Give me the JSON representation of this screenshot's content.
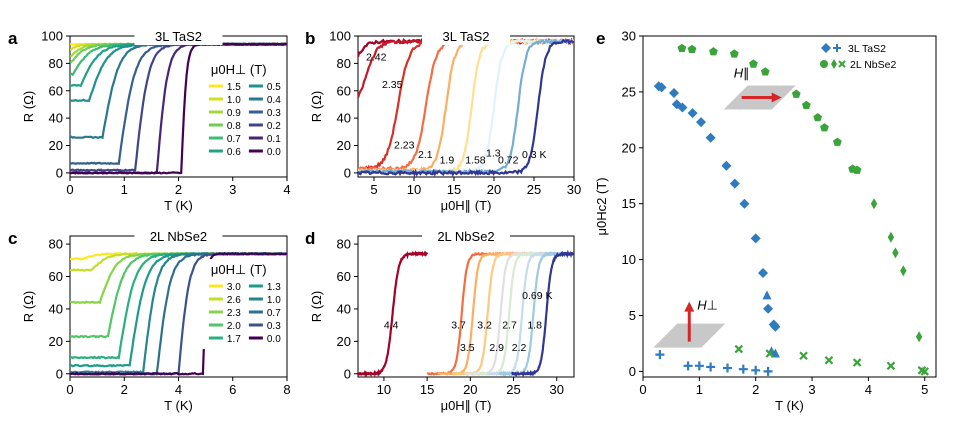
{
  "figure": {
    "panel_labels": [
      "a",
      "b",
      "c",
      "d",
      "e"
    ]
  },
  "colors": {
    "tas2_marker": "#2f7bbf",
    "nbse2_marker": "#3aa33a",
    "arrow": "#d62728",
    "plane": "#c8c8c8"
  },
  "chart_data": [
    {
      "panel": "a",
      "type": "line",
      "title": "3L TaS2",
      "xlabel": "T (K)",
      "ylabel": "R (Ω)",
      "xlim": [
        0,
        4
      ],
      "ylim": [
        -3,
        100
      ],
      "xticks": [
        0,
        1,
        2,
        3,
        4
      ],
      "yticks": [
        0,
        20,
        40,
        60,
        80,
        100
      ],
      "legend_title": "μ0H⊥ (T)",
      "legend_pos": "center-right",
      "rn": 94,
      "series": [
        {
          "name": "1.5",
          "tc": 0.0,
          "r0": 94,
          "w": 0.05,
          "color": "#fde725"
        },
        {
          "name": "1.0",
          "tc": 0.0,
          "r0": 90,
          "w": 0.2,
          "color": "#d0e11c"
        },
        {
          "name": "0.9",
          "tc": 0.0,
          "r0": 85,
          "w": 0.25,
          "color": "#a0da39"
        },
        {
          "name": "0.8",
          "tc": 0.0,
          "r0": 80,
          "w": 0.3,
          "color": "#6ece58"
        },
        {
          "name": "0.7",
          "tc": 0.05,
          "r0": 72,
          "w": 0.35,
          "color": "#3fbc73"
        },
        {
          "name": "0.6",
          "tc": 0.2,
          "r0": 64,
          "w": 0.35,
          "color": "#1fa187"
        },
        {
          "name": "0.5",
          "tc": 0.35,
          "r0": 53,
          "w": 0.35,
          "color": "#21918c"
        },
        {
          "name": "0.4",
          "tc": 0.6,
          "r0": 26,
          "w": 0.3,
          "color": "#2a788e"
        },
        {
          "name": "0.3",
          "tc": 0.9,
          "r0": 7,
          "w": 0.3,
          "color": "#355f8d"
        },
        {
          "name": "0.2",
          "tc": 1.2,
          "r0": 2,
          "w": 0.25,
          "color": "#414487"
        },
        {
          "name": "0.1",
          "tc": 1.6,
          "r0": 0,
          "w": 0.2,
          "color": "#482475"
        },
        {
          "name": "0.0",
          "tc": 2.05,
          "r0": 0,
          "w": 0.1,
          "color": "#440154"
        }
      ]
    },
    {
      "panel": "b",
      "type": "line",
      "title": "3L TaS2",
      "xlabel": "μ0H∥ (T)",
      "ylabel": "R (Ω)",
      "xlim": [
        3,
        30
      ],
      "ylim": [
        -3,
        100
      ],
      "xticks": [
        5,
        10,
        15,
        20,
        25,
        30
      ],
      "yticks": [
        0,
        20,
        40,
        60,
        80,
        100
      ],
      "rn": 96,
      "series": [
        {
          "name": "2.42",
          "hc": 3.0,
          "r0": 76,
          "w": 1.2,
          "color": "#a50026",
          "label_x": 4.0,
          "label_y": 82
        },
        {
          "name": "2.35",
          "hc": 4.0,
          "r0": 45,
          "w": 1.4,
          "color": "#c41a28",
          "label_x": 6.0,
          "label_y": 62
        },
        {
          "name": "2.23",
          "hc": 8.0,
          "r0": 3,
          "w": 1.4,
          "color": "#d73027",
          "label_x": 7.5,
          "label_y": 18
        },
        {
          "name": "2.1",
          "hc": 11.5,
          "r0": 3,
          "w": 1.3,
          "color": "#f46d43",
          "label_x": 10.5,
          "label_y": 11
        },
        {
          "name": "1.9",
          "hc": 14.0,
          "r0": 2,
          "w": 1.1,
          "color": "#fdae61",
          "label_x": 13.2,
          "label_y": 7
        },
        {
          "name": "1.58",
          "hc": 17.2,
          "r0": 1,
          "w": 1.0,
          "color": "#fee090",
          "label_x": 16.4,
          "label_y": 7
        },
        {
          "name": "1.3",
          "hc": 20.0,
          "r0": 1,
          "w": 1.0,
          "color": "#e0f3f8",
          "label_x": 19.0,
          "label_y": 12
        },
        {
          "name": "0.72",
          "hc": 23.0,
          "r0": 1,
          "w": 1.0,
          "color": "#74add1",
          "label_x": 20.5,
          "label_y": 7
        },
        {
          "name": "0.3 K",
          "hc": 25.5,
          "r0": 0,
          "w": 1.0,
          "color": "#313695",
          "label_x": 23.5,
          "label_y": 11
        }
      ]
    },
    {
      "panel": "c",
      "type": "line",
      "title": "2L NbSe2",
      "xlabel": "T (K)",
      "ylabel": "R (Ω)",
      "xlim": [
        0,
        8
      ],
      "ylim": [
        -2,
        85
      ],
      "xticks": [
        0,
        2,
        4,
        6,
        8
      ],
      "yticks": [
        0,
        20,
        40,
        60,
        80
      ],
      "legend_title": "μ0H⊥ (T)",
      "legend_pos": "center-right",
      "rn": 74,
      "series": [
        {
          "name": "3.0",
          "tc": 0.5,
          "r0": 71,
          "w": 0.5,
          "color": "#fde725"
        },
        {
          "name": "2.6",
          "tc": 0.8,
          "r0": 64,
          "w": 0.6,
          "color": "#c2df23"
        },
        {
          "name": "2.3",
          "tc": 1.1,
          "r0": 44,
          "w": 0.6,
          "color": "#86d549"
        },
        {
          "name": "2.0",
          "tc": 1.4,
          "r0": 23,
          "w": 0.6,
          "color": "#52c569"
        },
        {
          "name": "1.7",
          "tc": 1.8,
          "r0": 10,
          "w": 0.6,
          "color": "#2ab07f"
        },
        {
          "name": "1.3",
          "tc": 2.2,
          "r0": 5,
          "w": 0.6,
          "color": "#1e9b8a"
        },
        {
          "name": "1.0",
          "tc": 2.7,
          "r0": 1,
          "w": 0.5,
          "color": "#25858e"
        },
        {
          "name": "0.7",
          "tc": 3.2,
          "r0": 0,
          "w": 0.5,
          "color": "#2d708e"
        },
        {
          "name": "0.3",
          "tc": 4.0,
          "r0": 0,
          "w": 0.4,
          "color": "#3b528b"
        },
        {
          "name": "0.0",
          "tc": 4.9,
          "r0": 0,
          "w": 0.15,
          "color": "#440154"
        }
      ]
    },
    {
      "panel": "d",
      "type": "line",
      "title": "2L NbSe2",
      "xlabel": "μ0H∥ (T)",
      "ylabel": "R (Ω)",
      "xlim": [
        7,
        32
      ],
      "ylim": [
        -2,
        85
      ],
      "xticks": [
        10,
        15,
        20,
        25,
        30
      ],
      "yticks": [
        0,
        20,
        40,
        60,
        80
      ],
      "rn": 74,
      "series": [
        {
          "name": "4.4",
          "hc": 11.0,
          "r0": 0,
          "w": 0.7,
          "x_end": 15,
          "color": "#a50026",
          "label_x": 10.0,
          "label_y": 28
        },
        {
          "name": "3.7",
          "hc": 19.0,
          "r0": 0,
          "w": 0.6,
          "color": "#f46d43",
          "label_x": 17.8,
          "label_y": 28
        },
        {
          "name": "3.5",
          "hc": 20.3,
          "r0": 0,
          "w": 0.6,
          "color": "#fdae61",
          "label_x": 18.8,
          "label_y": 14
        },
        {
          "name": "3.2",
          "hc": 22.0,
          "r0": 0,
          "w": 0.6,
          "color": "#fec980",
          "label_x": 20.8,
          "label_y": 28
        },
        {
          "name": "2.9",
          "hc": 23.5,
          "r0": 0,
          "w": 0.6,
          "color": "#e0e0e0",
          "label_x": 22.2,
          "label_y": 14
        },
        {
          "name": "2.7",
          "hc": 24.5,
          "r0": 0,
          "w": 0.6,
          "color": "#d9ead3",
          "label_x": 23.7,
          "label_y": 28
        },
        {
          "name": "2.2",
          "hc": 26.0,
          "r0": 0,
          "w": 0.6,
          "color": "#c6dbef",
          "label_x": 24.8,
          "label_y": 14
        },
        {
          "name": "1.8",
          "hc": 27.3,
          "r0": 0,
          "w": 0.6,
          "color": "#9ecae1",
          "label_x": 26.6,
          "label_y": 28
        },
        {
          "name": "0.69 K",
          "hc": 28.8,
          "r0": 0,
          "w": 0.6,
          "color": "#313695",
          "label_x": 26.0,
          "label_y": 46
        }
      ]
    },
    {
      "panel": "e",
      "type": "scatter",
      "title": "",
      "xlabel": "T (K)",
      "ylabel": "μ0Hc2 (T)",
      "xlim": [
        0,
        5.2
      ],
      "ylim": [
        -0.5,
        30
      ],
      "xticks": [
        0,
        1,
        2,
        3,
        4,
        5
      ],
      "yticks": [
        0,
        5,
        10,
        15,
        20,
        25,
        30
      ],
      "legend": [
        "3L TaS2",
        "2L NbSe2"
      ],
      "legend_pos": "top-right",
      "annotations": [
        "H∥",
        "H⊥"
      ],
      "series": [
        {
          "name": "3L TaS2 H∥",
          "marker": "diamond",
          "x": [
            0.28,
            0.33,
            0.55,
            0.6,
            0.7,
            0.88,
            1.03,
            1.2,
            1.48,
            1.63,
            1.8,
            2.0,
            2.13,
            2.22,
            2.32,
            2.35
          ],
          "y": [
            25.5,
            25.4,
            24.9,
            23.9,
            23.6,
            23.1,
            22.3,
            20.9,
            18.4,
            16.8,
            15.0,
            11.9,
            8.8,
            5.6,
            4.2,
            4.0
          ]
        },
        {
          "name": "3L TaS2 triangle",
          "marker": "triangle",
          "x": [
            2.2,
            2.28,
            2.35
          ],
          "y": [
            6.8,
            1.8,
            1.6
          ]
        },
        {
          "name": "3L TaS2 H⊥",
          "marker": "plus",
          "x": [
            0.3,
            0.8,
            1.0,
            1.2,
            1.5,
            1.78,
            2.0,
            2.22
          ],
          "y": [
            1.5,
            0.5,
            0.5,
            0.4,
            0.3,
            0.2,
            0.1,
            0.0
          ]
        },
        {
          "name": "2L NbSe2 H∥",
          "marker": "pentagon",
          "x": [
            0.69,
            0.87,
            1.25,
            1.62,
            1.96,
            2.17,
            2.72,
            2.9,
            3.1,
            3.22,
            3.45,
            3.72,
            3.8
          ],
          "y": [
            28.9,
            28.8,
            28.6,
            28.4,
            27.5,
            26.8,
            24.8,
            23.8,
            22.7,
            21.8,
            20.5,
            18.1,
            18.0
          ]
        },
        {
          "name": "2L NbSe2 diamond",
          "marker": "diamond-thin",
          "x": [
            4.1,
            4.4,
            4.48,
            4.62,
            4.9
          ],
          "y": [
            15.0,
            12.0,
            10.6,
            9.0,
            3.1
          ]
        },
        {
          "name": "2L NbSe2 H⊥",
          "marker": "x",
          "x": [
            1.7,
            2.25,
            2.85,
            3.3,
            3.8,
            4.4,
            4.95,
            5.0
          ],
          "y": [
            2.0,
            1.6,
            1.4,
            1.0,
            0.8,
            0.5,
            0.1,
            0.0
          ]
        }
      ]
    }
  ]
}
